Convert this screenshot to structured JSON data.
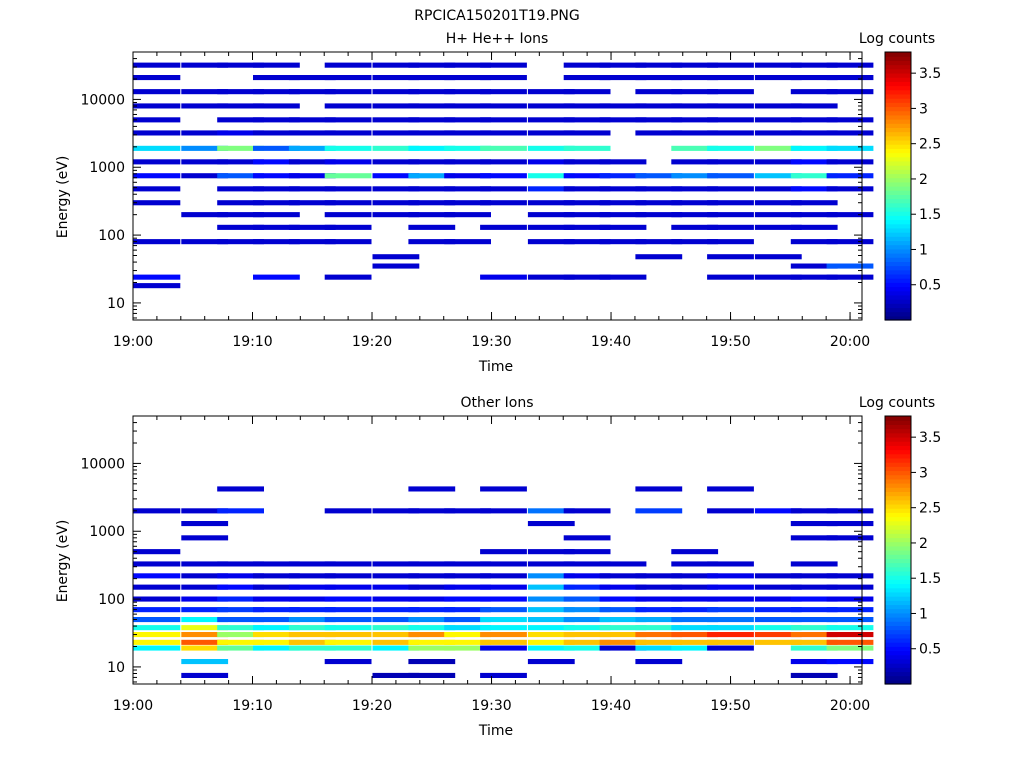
{
  "figure_title": "RPCICA150201T19.PNG",
  "panels": [
    {
      "title": "H+ He++ Ions",
      "xlabel": "Time",
      "ylabel": "Energy (eV)",
      "colorbar_label": "Log counts"
    },
    {
      "title": "Other Ions",
      "xlabel": "Time",
      "ylabel": "Energy (eV)",
      "colorbar_label": "Log counts"
    }
  ],
  "chart_data": [
    {
      "type": "heatmap",
      "title": "H+ He++ Ions",
      "xlabel": "Time",
      "ylabel": "Energy (eV)",
      "x_ticks": [
        "19:00",
        "19:10",
        "19:20",
        "19:30",
        "19:40",
        "19:50",
        "20:00"
      ],
      "xlim": [
        "19:00",
        "20:01"
      ],
      "y_scale": "log",
      "y_ticks": [
        "10",
        "100",
        "1000",
        "10000"
      ],
      "ylim": [
        5.6,
        50000
      ],
      "colorbar": {
        "label": "Log counts",
        "ticks": [
          "0.5",
          "1",
          "1.5",
          "2",
          "2.5",
          "3",
          "3.5"
        ],
        "range": [
          0,
          3.8
        ],
        "colormap": "jet"
      },
      "time_bins": [
        "19:00",
        "19:04",
        "19:07",
        "19:10",
        "19:13",
        "19:16",
        "19:20",
        "19:23",
        "19:26",
        "19:29",
        "19:33",
        "19:36",
        "19:39",
        "19:42",
        "19:45",
        "19:48",
        "19:52",
        "19:55",
        "19:58"
      ],
      "rows": [
        {
          "e": 18,
          "v": [
            0.3,
            null,
            null,
            null,
            null,
            null,
            null,
            null,
            null,
            null,
            null,
            null,
            null,
            null,
            null,
            null,
            null,
            null,
            null
          ]
        },
        {
          "e": 24,
          "v": [
            0.5,
            null,
            null,
            0.5,
            null,
            0.3,
            null,
            null,
            null,
            0.4,
            0.3,
            0.3,
            0.3,
            null,
            null,
            0.3,
            0.3,
            0.3,
            0.3
          ]
        },
        {
          "e": 35,
          "v": [
            null,
            null,
            null,
            null,
            null,
            null,
            0.3,
            null,
            null,
            null,
            null,
            null,
            null,
            null,
            null,
            null,
            null,
            0.3,
            0.8
          ]
        },
        {
          "e": 48,
          "v": [
            null,
            null,
            null,
            null,
            null,
            null,
            0.3,
            null,
            null,
            null,
            null,
            null,
            null,
            0.3,
            null,
            0.3,
            0.3,
            null,
            null
          ]
        },
        {
          "e": 80,
          "v": [
            0.3,
            0.3,
            0.3,
            0.3,
            0.3,
            0.3,
            null,
            0.3,
            0.3,
            null,
            0.3,
            0.3,
            0.3,
            0.3,
            0.3,
            0.3,
            null,
            0.3,
            0.3
          ]
        },
        {
          "e": 130,
          "v": [
            null,
            null,
            0.3,
            0.3,
            0.3,
            0.3,
            null,
            0.3,
            null,
            0.3,
            0.3,
            0.3,
            0.3,
            null,
            0.3,
            0.3,
            0.3,
            0.3,
            null
          ]
        },
        {
          "e": 200,
          "v": [
            null,
            0.3,
            0.3,
            0.3,
            null,
            0.3,
            0.3,
            0.3,
            0.3,
            null,
            0.3,
            0.3,
            0.3,
            0.3,
            0.3,
            0.3,
            0.3,
            0.3,
            0.3
          ]
        },
        {
          "e": 300,
          "v": [
            0.3,
            null,
            0.3,
            0.3,
            0.3,
            0.3,
            0.3,
            0.3,
            0.3,
            0.3,
            0.3,
            0.3,
            0.3,
            0.3,
            0.3,
            0.3,
            0.3,
            0.3,
            null
          ]
        },
        {
          "e": 480,
          "v": [
            0.3,
            null,
            0.3,
            0.3,
            0.3,
            0.3,
            0.3,
            0.3,
            0.3,
            0.3,
            0.6,
            0.3,
            0.3,
            0.3,
            0.3,
            0.3,
            0.3,
            0.5,
            0.3
          ]
        },
        {
          "e": 750,
          "v": [
            0.5,
            0.3,
            0.8,
            0.5,
            0.4,
            1.8,
            0.5,
            1.1,
            0.4,
            0.5,
            1.5,
            0.5,
            0.6,
            0.8,
            1.0,
            0.8,
            1.2,
            1.6,
            0.6
          ]
        },
        {
          "e": 1200,
          "v": [
            0.3,
            0.3,
            0.3,
            0.5,
            0.3,
            0.4,
            0.3,
            0.3,
            0.3,
            0.3,
            0.4,
            0.3,
            0.3,
            null,
            0.3,
            0.3,
            0.3,
            0.5,
            0.3
          ]
        },
        {
          "e": 1900,
          "v": [
            1.3,
            1.0,
            1.9,
            0.8,
            1.1,
            1.5,
            1.6,
            1.4,
            1.5,
            1.7,
            1.5,
            1.6,
            null,
            null,
            1.7,
            1.5,
            1.9,
            1.4,
            1.3
          ]
        },
        {
          "e": 3200,
          "v": [
            0.3,
            0.3,
            0.4,
            0.3,
            0.3,
            0.3,
            0.3,
            0.3,
            0.3,
            0.3,
            0.3,
            0.3,
            null,
            0.3,
            0.3,
            0.3,
            0.3,
            0.3,
            0.3
          ]
        },
        {
          "e": 5000,
          "v": [
            0.3,
            null,
            0.3,
            0.3,
            0.3,
            0.3,
            0.3,
            0.3,
            0.3,
            0.3,
            0.3,
            0.3,
            0.3,
            0.3,
            0.3,
            0.3,
            0.3,
            0.3,
            0.3
          ]
        },
        {
          "e": 8000,
          "v": [
            0.3,
            0.3,
            0.3,
            0.3,
            null,
            0.3,
            0.3,
            0.3,
            0.3,
            0.3,
            0.3,
            0.3,
            0.3,
            0.3,
            0.3,
            0.3,
            0.3,
            0.3,
            null
          ]
        },
        {
          "e": 13000,
          "v": [
            0.3,
            0.3,
            0.3,
            0.3,
            0.3,
            0.3,
            0.3,
            0.3,
            0.3,
            0.3,
            0.3,
            0.3,
            null,
            0.3,
            0.3,
            0.3,
            null,
            0.3,
            0.3
          ]
        },
        {
          "e": 21000,
          "v": [
            0.3,
            null,
            null,
            0.3,
            0.3,
            0.3,
            0.3,
            0.3,
            0.3,
            0.3,
            null,
            0.3,
            0.3,
            0.3,
            0.3,
            0.3,
            0.3,
            0.3,
            0.3
          ]
        },
        {
          "e": 32000,
          "v": [
            0.3,
            0.3,
            0.3,
            0.3,
            null,
            0.3,
            0.3,
            0.3,
            0.3,
            0.3,
            null,
            0.3,
            0.3,
            0.3,
            0.3,
            0.3,
            0.3,
            0.3,
            0.3
          ]
        }
      ]
    },
    {
      "type": "heatmap",
      "title": "Other Ions",
      "xlabel": "Time",
      "ylabel": "Energy (eV)",
      "x_ticks": [
        "19:00",
        "19:10",
        "19:20",
        "19:30",
        "19:40",
        "19:50",
        "20:00"
      ],
      "xlim": [
        "19:00",
        "20:01"
      ],
      "y_scale": "log",
      "y_ticks": [
        "10",
        "100",
        "1000",
        "10000"
      ],
      "ylim": [
        5.6,
        50000
      ],
      "colorbar": {
        "label": "Log counts",
        "ticks": [
          "0.5",
          "1",
          "1.5",
          "2",
          "2.5",
          "3",
          "3.5"
        ],
        "range": [
          0,
          3.8
        ],
        "colormap": "jet"
      },
      "time_bins": [
        "19:00",
        "19:04",
        "19:07",
        "19:10",
        "19:13",
        "19:16",
        "19:20",
        "19:23",
        "19:26",
        "19:29",
        "19:33",
        "19:36",
        "19:39",
        "19:42",
        "19:45",
        "19:48",
        "19:52",
        "19:55",
        "19:58"
      ],
      "rows": [
        {
          "e": 7.5,
          "v": [
            null,
            0.3,
            null,
            null,
            null,
            null,
            0.2,
            0.2,
            null,
            0.3,
            null,
            null,
            null,
            null,
            null,
            null,
            null,
            0.2,
            null
          ]
        },
        {
          "e": 12,
          "v": [
            null,
            1.2,
            null,
            null,
            null,
            0.3,
            null,
            0.2,
            null,
            null,
            0.3,
            null,
            null,
            0.3,
            null,
            null,
            null,
            0.4,
            0.5
          ]
        },
        {
          "e": 19,
          "v": [
            1.4,
            2.5,
            1.8,
            1.4,
            1.6,
            1.6,
            1.4,
            2.0,
            2.0,
            0.4,
            1.4,
            1.5,
            0.3,
            1.3,
            1.4,
            0.3,
            null,
            1.6,
            1.9
          ]
        },
        {
          "e": 23,
          "v": [
            2.4,
            3.0,
            2.4,
            2.4,
            2.6,
            2.4,
            2.6,
            2.4,
            2.4,
            2.6,
            2.4,
            2.6,
            2.8,
            2.6,
            2.6,
            2.6,
            2.6,
            2.6,
            3.0
          ]
        },
        {
          "e": 30,
          "v": [
            2.4,
            2.8,
            2.0,
            2.5,
            2.6,
            2.6,
            2.6,
            2.8,
            2.4,
            2.8,
            2.5,
            2.6,
            2.6,
            2.9,
            3.0,
            3.2,
            3.1,
            2.9,
            3.5
          ]
        },
        {
          "e": 38,
          "v": [
            1.5,
            2.3,
            1.6,
            1.4,
            1.6,
            1.5,
            1.6,
            1.5,
            1.3,
            1.4,
            1.4,
            1.5,
            1.6,
            1.6,
            1.3,
            1.3,
            1.5,
            1.6,
            1.5
          ]
        },
        {
          "e": 50,
          "v": [
            0.8,
            1.4,
            0.8,
            0.8,
            1.0,
            0.8,
            0.8,
            1.0,
            0.8,
            1.3,
            1.2,
            1.0,
            1.2,
            1.1,
            0.9,
            0.9,
            0.8,
            0.8,
            0.8
          ]
        },
        {
          "e": 70,
          "v": [
            0.6,
            0.6,
            0.7,
            0.6,
            0.6,
            0.6,
            0.6,
            0.6,
            0.6,
            0.8,
            1.2,
            1.0,
            0.8,
            0.6,
            0.6,
            0.7,
            0.6,
            0.6,
            0.6
          ]
        },
        {
          "e": 100,
          "v": [
            0.3,
            0.4,
            0.6,
            0.4,
            0.4,
            0.5,
            0.4,
            0.4,
            0.5,
            0.5,
            1.0,
            0.8,
            0.5,
            0.4,
            0.4,
            0.4,
            0.4,
            0.5,
            0.4
          ]
        },
        {
          "e": 150,
          "v": [
            0.3,
            0.3,
            0.5,
            0.3,
            0.4,
            0.4,
            0.4,
            0.3,
            0.4,
            0.4,
            1.2,
            0.6,
            0.4,
            0.3,
            0.3,
            0.4,
            0.3,
            0.3,
            0.3
          ]
        },
        {
          "e": 220,
          "v": [
            0.5,
            0.3,
            0.4,
            0.3,
            0.3,
            0.3,
            0.3,
            0.3,
            0.3,
            0.3,
            1.0,
            0.4,
            0.3,
            0.3,
            0.3,
            0.4,
            0.3,
            0.3,
            0.3
          ]
        },
        {
          "e": 330,
          "v": [
            0.3,
            0.3,
            0.3,
            0.3,
            0.3,
            0.3,
            0.3,
            0.3,
            0.3,
            0.3,
            0.3,
            0.3,
            0.3,
            null,
            0.3,
            0.3,
            null,
            0.3,
            null
          ]
        },
        {
          "e": 500,
          "v": [
            0.3,
            null,
            null,
            null,
            null,
            null,
            null,
            null,
            null,
            0.3,
            0.3,
            0.3,
            null,
            null,
            0.3,
            null,
            null,
            null,
            null
          ]
        },
        {
          "e": 800,
          "v": [
            null,
            0.3,
            null,
            null,
            null,
            null,
            null,
            null,
            null,
            null,
            null,
            0.3,
            null,
            null,
            null,
            null,
            null,
            0.3,
            0.3
          ]
        },
        {
          "e": 1300,
          "v": [
            null,
            0.3,
            null,
            null,
            null,
            null,
            null,
            null,
            null,
            null,
            0.3,
            null,
            null,
            null,
            null,
            null,
            null,
            0.3,
            0.3
          ]
        },
        {
          "e": 2000,
          "v": [
            0.3,
            0.3,
            0.6,
            null,
            null,
            0.3,
            0.3,
            0.3,
            0.3,
            0.3,
            0.9,
            0.3,
            null,
            0.7,
            null,
            0.3,
            0.5,
            0.3,
            0.3
          ]
        },
        {
          "e": 4200,
          "v": [
            null,
            null,
            0.3,
            null,
            null,
            null,
            null,
            0.3,
            null,
            0.3,
            null,
            null,
            null,
            0.3,
            null,
            0.3,
            null,
            null,
            null
          ]
        }
      ]
    }
  ]
}
